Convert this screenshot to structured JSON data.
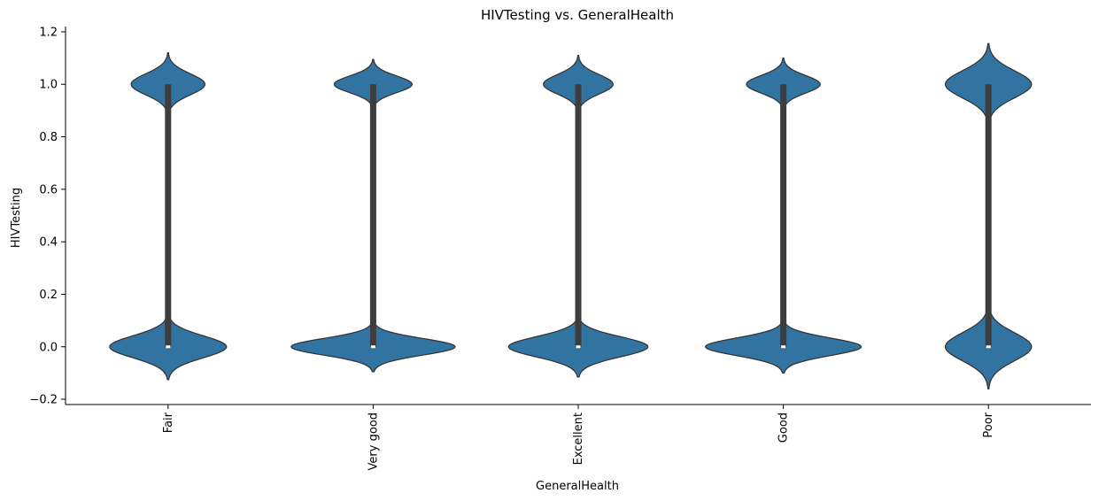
{
  "chart_data": {
    "type": "violin",
    "title": "HIVTesting vs. GeneralHealth",
    "xlabel": "GeneralHealth",
    "ylabel": "HIVTesting",
    "categories": [
      "Fair",
      "Very good",
      "Excellent",
      "Good",
      "Poor"
    ],
    "ylim": [
      -0.22,
      1.22
    ],
    "yticks": [
      -0.2,
      0.0,
      0.2,
      0.4,
      0.6,
      0.8,
      1.0,
      1.2
    ],
    "ytick_labels": [
      "−0.2",
      "0.0",
      "0.2",
      "0.4",
      "0.6",
      "0.8",
      "1.0",
      "1.2"
    ],
    "color": "#3274a1",
    "edge_color": "#333333",
    "box_color": "#3d3d3d",
    "violins": [
      {
        "category": "Fair",
        "low_mode": 0.0,
        "high_mode": 1.0,
        "y_min": -0.125,
        "y_max": 1.12,
        "lower_half_width": 0.285,
        "upper_half_width": 0.18,
        "q1": 0.0,
        "median": 0.0,
        "q3": 1.0
      },
      {
        "category": "Very good",
        "low_mode": 0.0,
        "high_mode": 1.0,
        "y_min": -0.095,
        "y_max": 1.095,
        "lower_half_width": 0.4,
        "upper_half_width": 0.19,
        "q1": 0.0,
        "median": 0.0,
        "q3": 1.0
      },
      {
        "category": "Excellent",
        "low_mode": 0.0,
        "high_mode": 1.0,
        "y_min": -0.115,
        "y_max": 1.11,
        "lower_half_width": 0.34,
        "upper_half_width": 0.17,
        "q1": 0.0,
        "median": 0.0,
        "q3": 1.0
      },
      {
        "category": "Good",
        "low_mode": 0.0,
        "high_mode": 1.0,
        "y_min": -0.1,
        "y_max": 1.1,
        "lower_half_width": 0.38,
        "upper_half_width": 0.18,
        "q1": 0.0,
        "median": 0.0,
        "q3": 1.0
      },
      {
        "category": "Poor",
        "low_mode": 0.0,
        "high_mode": 1.0,
        "y_min": -0.16,
        "y_max": 1.155,
        "lower_half_width": 0.21,
        "upper_half_width": 0.21,
        "q1": 0.0,
        "median": 0.0,
        "q3": 1.0
      }
    ],
    "grid": false,
    "legend": "none"
  }
}
